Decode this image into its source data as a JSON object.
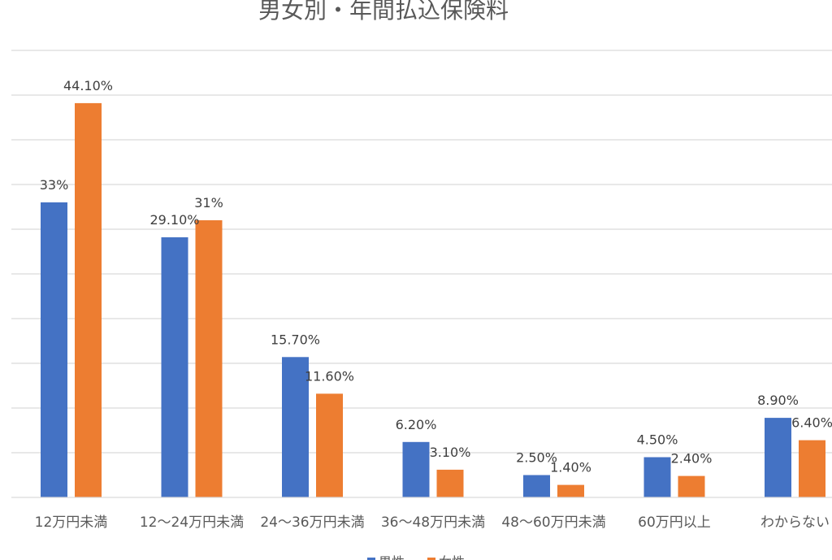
{
  "chart_data": {
    "type": "bar",
    "title": "男女別・年間払込保険料",
    "xlabel": "",
    "ylabel": "",
    "categories": [
      "12万円未満",
      "12〜24万円未満",
      "24〜36万円未満",
      "36〜48万円未満",
      "48〜60万円未満",
      "60万円以上",
      "わからない"
    ],
    "series": [
      {
        "name": "男性",
        "color": "#4472C4",
        "values": [
          33,
          29.1,
          15.7,
          6.2,
          2.5,
          4.5,
          8.9
        ],
        "labels": [
          "33%",
          "29.10%",
          "15.70%",
          "6.20%",
          "2.50%",
          "4.50%",
          "8.90%"
        ]
      },
      {
        "name": "女性",
        "color": "#ED7D31",
        "values": [
          44.1,
          31,
          11.6,
          3.1,
          1.4,
          2.4,
          6.4
        ],
        "labels": [
          "44.10%",
          "31%",
          "11.60%",
          "3.10%",
          "1.40%",
          "2.40%",
          "6.40%"
        ]
      }
    ],
    "ylim": [
      0,
      50
    ],
    "grid": true,
    "legend_position": "bottom"
  }
}
